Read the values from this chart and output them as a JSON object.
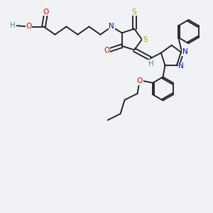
{
  "background_color": "#f0f2f5",
  "atom_colors": {
    "C": "#1a1a1a",
    "H": "#4a9a6a",
    "N": "#0000ee",
    "O": "#dd0000",
    "S": "#aaaa00"
  },
  "figsize": [
    3.0,
    3.0
  ],
  "dpi": 100
}
